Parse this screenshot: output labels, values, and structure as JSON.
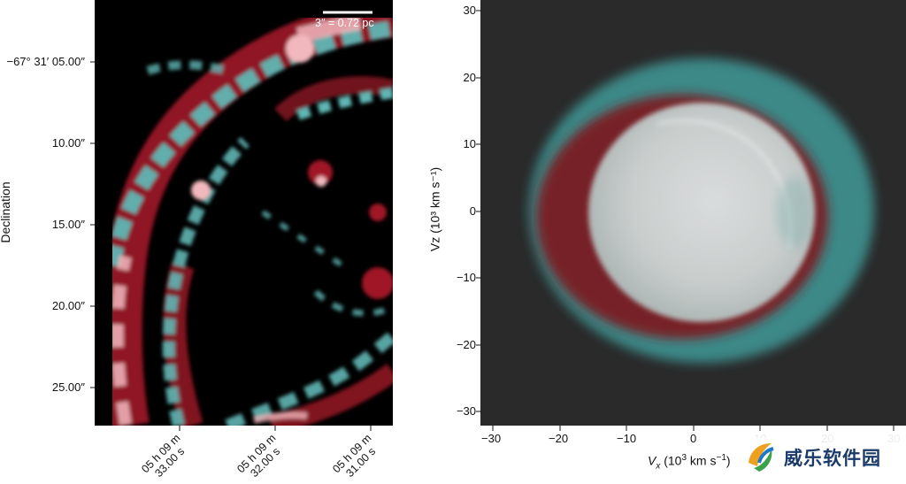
{
  "left_panel": {
    "ylabel": "Declination",
    "dec_ticks": [
      "−67° 31′ 05.00″",
      "10.00″",
      "15.00″",
      "20.00″",
      "25.00″"
    ],
    "ra_ticks": [
      {
        "line1": "05 h 09 m",
        "line2": "33.00 s"
      },
      {
        "line1": "05 h 09 m",
        "line2": "32.00 s"
      },
      {
        "line1": "05 h 09 m",
        "line2": "31.00 s"
      }
    ],
    "scalebar_label": "3″ = 0.72 pc",
    "colors": {
      "red": "#a01828",
      "cyan": "#5fb6b4",
      "pink": "#f1b8bd"
    }
  },
  "right_panel": {
    "xlabel_sym": "V",
    "xlabel_sub": "x",
    "xlabel_unit": "(10",
    "xlabel_exp": "3",
    "xlabel_tail": " km s",
    "xlabel_tail_exp": "−1",
    "xlabel_close": ")",
    "ylabel": "Vz (10³ km s⁻¹)",
    "x_ticks": [
      "−30",
      "−20",
      "−10",
      "0",
      "10",
      "20",
      "30"
    ],
    "y_ticks": [
      "30",
      "20",
      "10",
      "0",
      "−10",
      "−20",
      "−30"
    ],
    "xlim": [
      -32,
      32
    ],
    "ylim": [
      -32,
      32
    ]
  },
  "watermark": {
    "text": "威乐软件园"
  }
}
